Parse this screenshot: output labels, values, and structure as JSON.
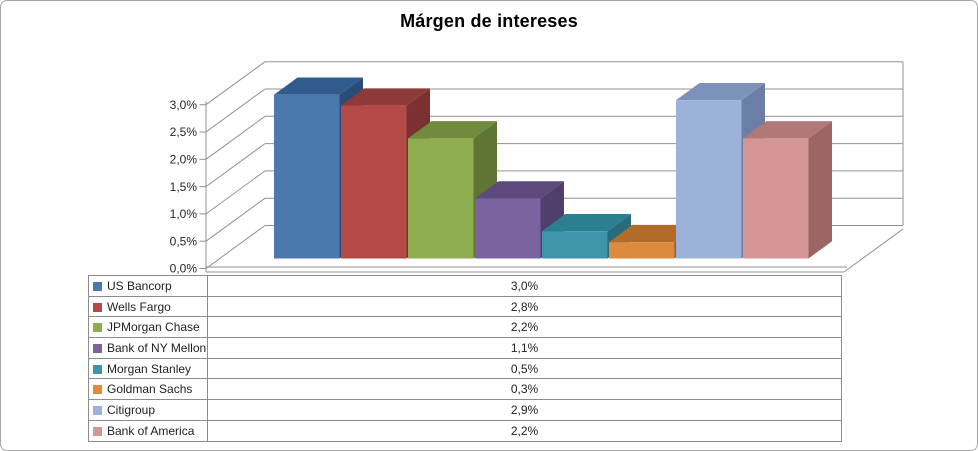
{
  "window": {
    "background": "#ffffff",
    "border_color": "#a6a6a6"
  },
  "chart_data": {
    "type": "bar",
    "style": "3d-column",
    "title": "Márgen de intereses",
    "categories": [
      "US Bancorp",
      "Wells Fargo",
      "JPMorgan Chase",
      "Bank of NY Mellon",
      "Morgan Stanley",
      "Goldman Sachs",
      "Citigroup",
      "Bank of America"
    ],
    "values": [
      3.0,
      2.8,
      2.2,
      1.1,
      0.5,
      0.3,
      2.9,
      2.2
    ],
    "value_labels": [
      "3,0%",
      "2,8%",
      "2,2%",
      "1,1%",
      "0,5%",
      "0,3%",
      "2,9%",
      "2,2%"
    ],
    "ylim": [
      0,
      3.0
    ],
    "ytick_step": 0.5,
    "ytick_labels": [
      "0,0%",
      "0,5%",
      "1,0%",
      "1,5%",
      "2,0%",
      "2,5%",
      "3,0%"
    ],
    "grid": true,
    "legend_position": "table-below",
    "axis_text_color": "#262626",
    "grid_color": "#909090",
    "series_colors": [
      {
        "front": "#4A78AF",
        "top": "#315A8E",
        "side": "#2B4B78"
      },
      {
        "front": "#B34A47",
        "top": "#8E3A38",
        "side": "#7C3130"
      },
      {
        "front": "#8EAC50",
        "top": "#6F8B3B",
        "side": "#5E7533"
      },
      {
        "front": "#7B63A0",
        "top": "#5C4A7D",
        "side": "#4F3F6B"
      },
      {
        "front": "#3E95A9",
        "top": "#2C7F92",
        "side": "#266C7E"
      },
      {
        "front": "#DC8A3D",
        "top": "#B26C28",
        "side": "#9A5D21"
      },
      {
        "front": "#9DB2D9",
        "top": "#7D92BB",
        "side": "#6B7FA6"
      },
      {
        "front": "#D49695",
        "top": "#B17877",
        "side": "#9B6564"
      }
    ]
  },
  "legend_table": {
    "rows": [
      {
        "label": "US Bancorp",
        "value": "3,0%"
      },
      {
        "label": "Wells Fargo",
        "value": "2,8%"
      },
      {
        "label": "JPMorgan Chase",
        "value": "2,2%"
      },
      {
        "label": "Bank of NY Mellon",
        "value": "1,1%"
      },
      {
        "label": "Morgan Stanley",
        "value": "0,5%"
      },
      {
        "label": "Goldman Sachs",
        "value": "0,3%"
      },
      {
        "label": "Citigroup",
        "value": "2,9%"
      },
      {
        "label": "Bank of America",
        "value": "2,2%"
      }
    ]
  }
}
